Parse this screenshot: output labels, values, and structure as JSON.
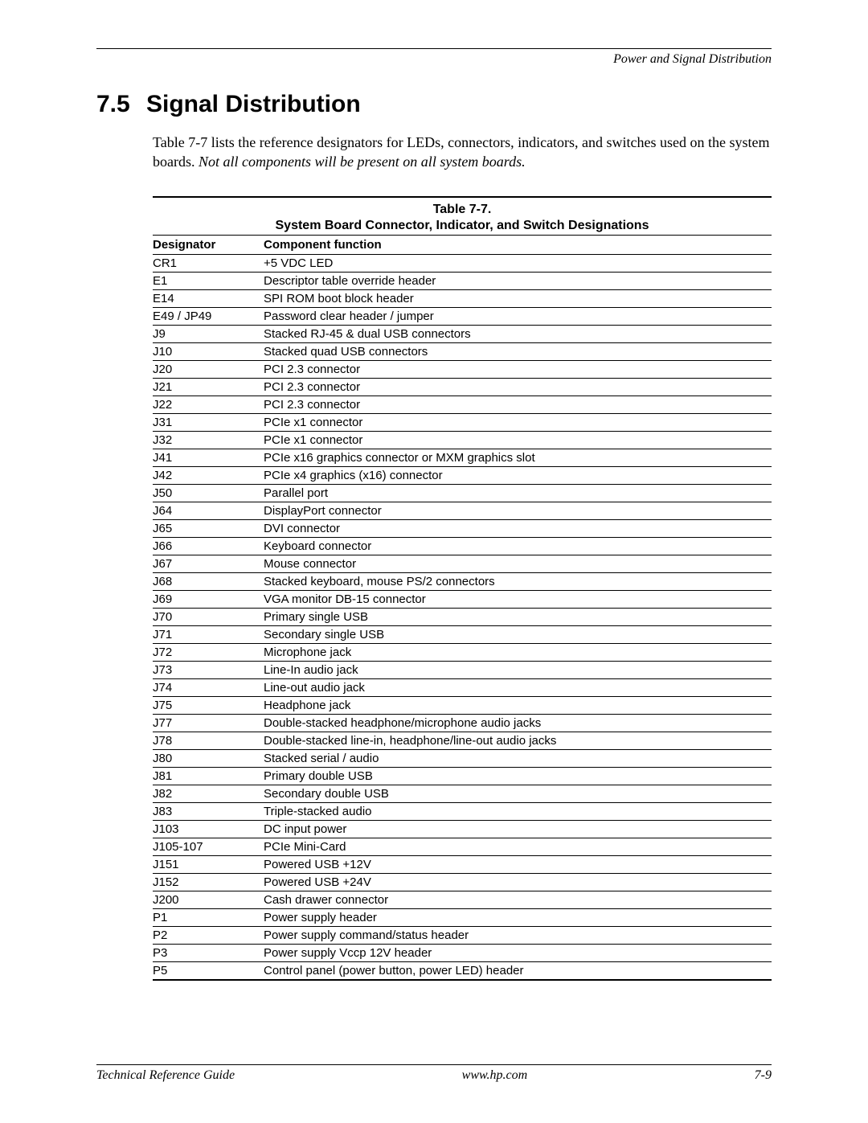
{
  "running_head": "Power and Signal Distribution",
  "section": {
    "number": "7.5",
    "title": "Signal Distribution"
  },
  "intro": {
    "text": "Table 7-7 lists the reference designators for LEDs, connectors, indicators, and switches used on the system boards. ",
    "italic": "Not all components will be present on all system boards."
  },
  "table": {
    "caption": "Table 7-7.",
    "subcaption": "System Board Connector, Indicator, and Switch Designations",
    "headers": {
      "designator": "Designator",
      "function": "Component function"
    },
    "rows": [
      {
        "d": "CR1",
        "f": "+5 VDC LED"
      },
      {
        "d": "E1",
        "f": "Descriptor table override header"
      },
      {
        "d": "E14",
        "f": "SPI ROM boot block header"
      },
      {
        "d": "E49 / JP49",
        "f": "Password clear header / jumper"
      },
      {
        "d": "J9",
        "f": "Stacked RJ-45 & dual USB connectors"
      },
      {
        "d": "J10",
        "f": "Stacked quad USB connectors"
      },
      {
        "d": "J20",
        "f": "PCI 2.3 connector"
      },
      {
        "d": "J21",
        "f": "PCI 2.3 connector"
      },
      {
        "d": "J22",
        "f": "PCI 2.3 connector"
      },
      {
        "d": "J31",
        "f": "PCIe x1 connector"
      },
      {
        "d": "J32",
        "f": "PCIe x1 connector"
      },
      {
        "d": "J41",
        "f": "PCIe x16 graphics connector or MXM graphics slot"
      },
      {
        "d": "J42",
        "f": "PCIe x4 graphics (x16) connector"
      },
      {
        "d": "J50",
        "f": "Parallel port"
      },
      {
        "d": "J64",
        "f": "DisplayPort connector"
      },
      {
        "d": "J65",
        "f": "DVI connector"
      },
      {
        "d": "J66",
        "f": "Keyboard connector"
      },
      {
        "d": "J67",
        "f": "Mouse connector"
      },
      {
        "d": "J68",
        "f": "Stacked keyboard, mouse PS/2 connectors"
      },
      {
        "d": "J69",
        "f": "VGA monitor DB-15 connector"
      },
      {
        "d": "J70",
        "f": "Primary single USB"
      },
      {
        "d": "J71",
        "f": "Secondary single USB"
      },
      {
        "d": "J72",
        "f": "Microphone jack"
      },
      {
        "d": "J73",
        "f": "Line-In audio jack"
      },
      {
        "d": "J74",
        "f": "Line-out audio jack"
      },
      {
        "d": "J75",
        "f": "Headphone jack"
      },
      {
        "d": "J77",
        "f": "Double-stacked headphone/microphone audio jacks"
      },
      {
        "d": "J78",
        "f": "Double-stacked line-in, headphone/line-out audio jacks"
      },
      {
        "d": "J80",
        "f": "Stacked serial / audio"
      },
      {
        "d": "J81",
        "f": "Primary double USB"
      },
      {
        "d": "J82",
        "f": "Secondary double USB"
      },
      {
        "d": "J83",
        "f": "Triple-stacked audio"
      },
      {
        "d": "J103",
        "f": "DC input power"
      },
      {
        "d": "J105-107",
        "f": "PCIe Mini-Card"
      },
      {
        "d": "J151",
        "f": "Powered USB +12V"
      },
      {
        "d": "J152",
        "f": "Powered USB +24V"
      },
      {
        "d": "J200",
        "f": "Cash drawer connector"
      },
      {
        "d": "P1",
        "f": "Power supply header"
      },
      {
        "d": "P2",
        "f": "Power supply command/status header"
      },
      {
        "d": "P3",
        "f": "Power supply Vccp 12V header"
      },
      {
        "d": "P5",
        "f": "Control panel (power button, power LED) header"
      }
    ]
  },
  "footer": {
    "left": "Technical Reference Guide",
    "center": "www.hp.com",
    "right": "7-9"
  }
}
